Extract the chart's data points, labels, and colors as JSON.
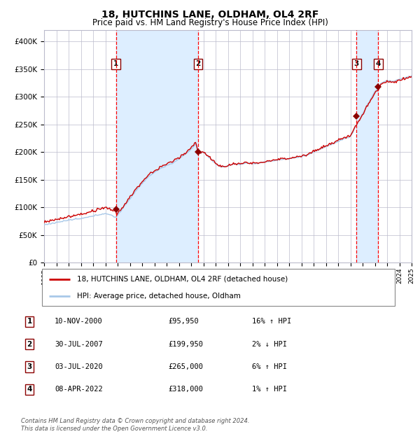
{
  "title": "18, HUTCHINS LANE, OLDHAM, OL4 2RF",
  "subtitle": "Price paid vs. HM Land Registry's House Price Index (HPI)",
  "hpi_color": "#a8c8e8",
  "price_color": "#cc0000",
  "shade_color": "#ddeeff",
  "grid_color": "#bbbbcc",
  "ylim": [
    0,
    420000
  ],
  "yticks": [
    0,
    50000,
    100000,
    150000,
    200000,
    250000,
    300000,
    350000,
    400000
  ],
  "ytick_labels": [
    "£0",
    "£50K",
    "£100K",
    "£150K",
    "£200K",
    "£250K",
    "£300K",
    "£350K",
    "£400K"
  ],
  "purchases": [
    {
      "label": "1",
      "date_num": 2000.87,
      "price": 95950,
      "date_str": "10-NOV-2000",
      "pct": "16%",
      "dir": "↑"
    },
    {
      "label": "2",
      "date_num": 2007.58,
      "price": 199950,
      "date_str": "30-JUL-2007",
      "pct": "2%",
      "dir": "↓"
    },
    {
      "label": "3",
      "date_num": 2020.51,
      "price": 265000,
      "date_str": "03-JUL-2020",
      "pct": "6%",
      "dir": "↑"
    },
    {
      "label": "4",
      "date_num": 2022.27,
      "price": 318000,
      "date_str": "08-APR-2022",
      "pct": "1%",
      "dir": "↑"
    }
  ],
  "legend_entries": [
    {
      "label": "18, HUTCHINS LANE, OLDHAM, OL4 2RF (detached house)",
      "color": "#cc0000",
      "lw": 2
    },
    {
      "label": "HPI: Average price, detached house, Oldham",
      "color": "#a8c8e8",
      "lw": 2
    }
  ],
  "table_rows": [
    [
      "1",
      "10-NOV-2000",
      "£95,950",
      "16% ↑ HPI"
    ],
    [
      "2",
      "30-JUL-2007",
      "£199,950",
      "2% ↓ HPI"
    ],
    [
      "3",
      "03-JUL-2020",
      "£265,000",
      "6% ↑ HPI"
    ],
    [
      "4",
      "08-APR-2022",
      "£318,000",
      "1% ↑ HPI"
    ]
  ],
  "footer": "Contains HM Land Registry data © Crown copyright and database right 2024.\nThis data is licensed under the Open Government Licence v3.0.",
  "xstart": 1995,
  "xend": 2025
}
